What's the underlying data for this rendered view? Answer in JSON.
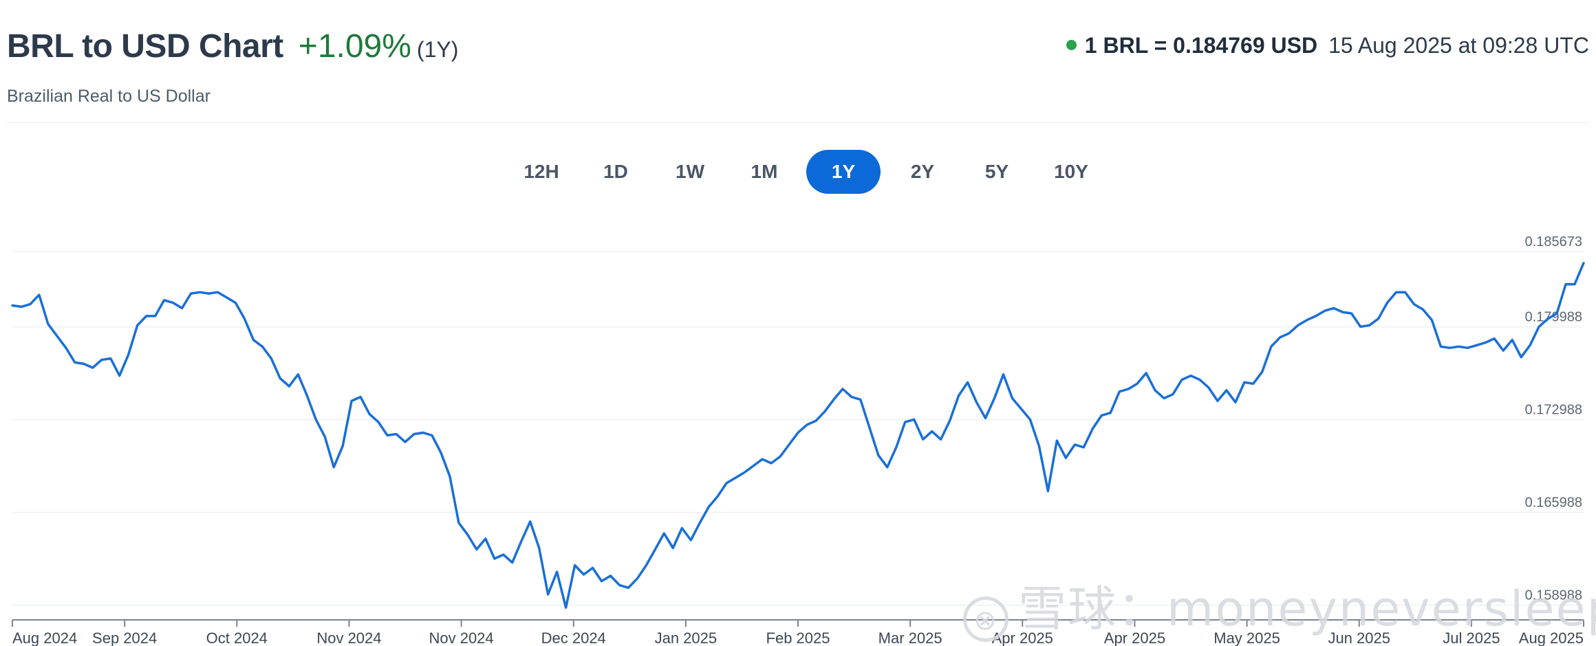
{
  "header": {
    "title": "BRL to USD Chart",
    "change": "+1.09%",
    "period": "(1Y)",
    "subtitle": "Brazilian Real to US Dollar",
    "rate_value": "1 BRL = 0.184769 USD",
    "timestamp": "15 Aug 2025 at 09:28 UTC",
    "status_dot_color": "#2ca24d"
  },
  "ranges": {
    "items": [
      "12H",
      "1D",
      "1W",
      "1M",
      "1Y",
      "2Y",
      "5Y",
      "10Y"
    ],
    "active": "1Y"
  },
  "watermark": {
    "logo_glyph": "⊗",
    "text": "雪球：moneyneversleeps"
  },
  "chart_data": {
    "type": "line",
    "title": "",
    "xlabel": "",
    "ylabel": "",
    "line_color": "#1a6fd8",
    "grid": true,
    "x_tick_labels": [
      "Aug 2024",
      "Sep 2024",
      "Oct 2024",
      "Nov 2024",
      "Nov 2024",
      "Dec 2024",
      "Jan 2025",
      "Feb 2025",
      "Mar 2025",
      "Apr 2025",
      "Apr 2025",
      "May 2025",
      "Jun 2025",
      "Jul 2025",
      "Aug 2025"
    ],
    "y_ticks": [
      "0.185673",
      "0.179988",
      "0.172988",
      "0.165988",
      "0.158988"
    ],
    "ylim": [
      0.1585,
      0.1865
    ],
    "series": [
      {
        "values": [
          0.1816,
          0.1815,
          0.1817,
          0.1824,
          0.1802,
          0.1793,
          0.1784,
          0.1773,
          0.1772,
          0.1769,
          0.1775,
          0.1776,
          0.1763,
          0.1779,
          0.1801,
          0.1808,
          0.1808,
          0.182,
          0.1818,
          0.1814,
          0.1825,
          0.1826,
          0.1825,
          0.1826,
          0.1822,
          0.1818,
          0.1806,
          0.179,
          0.1785,
          0.1776,
          0.1761,
          0.1755,
          0.1764,
          0.1748,
          0.173,
          0.1717,
          0.1694,
          0.171,
          0.1744,
          0.1747,
          0.1734,
          0.1728,
          0.1718,
          0.1719,
          0.1713,
          0.1719,
          0.172,
          0.1718,
          0.1705,
          0.1687,
          0.1652,
          0.1643,
          0.1632,
          0.164,
          0.1625,
          0.1628,
          0.1622,
          0.1638,
          0.1653,
          0.1633,
          0.1598,
          0.1615,
          0.1588,
          0.162,
          0.1613,
          0.1618,
          0.1608,
          0.1612,
          0.1605,
          0.1603,
          0.161,
          0.162,
          0.1632,
          0.1644,
          0.1633,
          0.1648,
          0.1639,
          0.1652,
          0.1664,
          0.1672,
          0.1682,
          0.1686,
          0.169,
          0.1695,
          0.17,
          0.1697,
          0.1702,
          0.1711,
          0.172,
          0.1726,
          0.1729,
          0.1736,
          0.1745,
          0.1753,
          0.1747,
          0.1745,
          0.1724,
          0.1703,
          0.1694,
          0.1709,
          0.1728,
          0.173,
          0.1715,
          0.1721,
          0.1715,
          0.1729,
          0.1748,
          0.1758,
          0.1743,
          0.1731,
          0.1746,
          0.1764,
          0.1746,
          0.1738,
          0.173,
          0.171,
          0.1676,
          0.1714,
          0.1701,
          0.1711,
          0.1709,
          0.1723,
          0.1733,
          0.1735,
          0.1751,
          0.1753,
          0.1757,
          0.1765,
          0.1752,
          0.1746,
          0.1749,
          0.176,
          0.1763,
          0.176,
          0.1754,
          0.1744,
          0.1752,
          0.1743,
          0.1758,
          0.1757,
          0.1766,
          0.1785,
          0.1792,
          0.1795,
          0.1801,
          0.1805,
          0.1808,
          0.1812,
          0.1814,
          0.1811,
          0.181,
          0.18,
          0.1801,
          0.1806,
          0.1818,
          0.1826,
          0.1826,
          0.1817,
          0.1813,
          0.1805,
          0.1785,
          0.1784,
          0.1785,
          0.1784,
          0.1786,
          0.1788,
          0.1791,
          0.1782,
          0.179,
          0.1777,
          0.1786,
          0.18,
          0.1806,
          0.181,
          0.1832,
          0.1832,
          0.1848
        ]
      }
    ]
  }
}
